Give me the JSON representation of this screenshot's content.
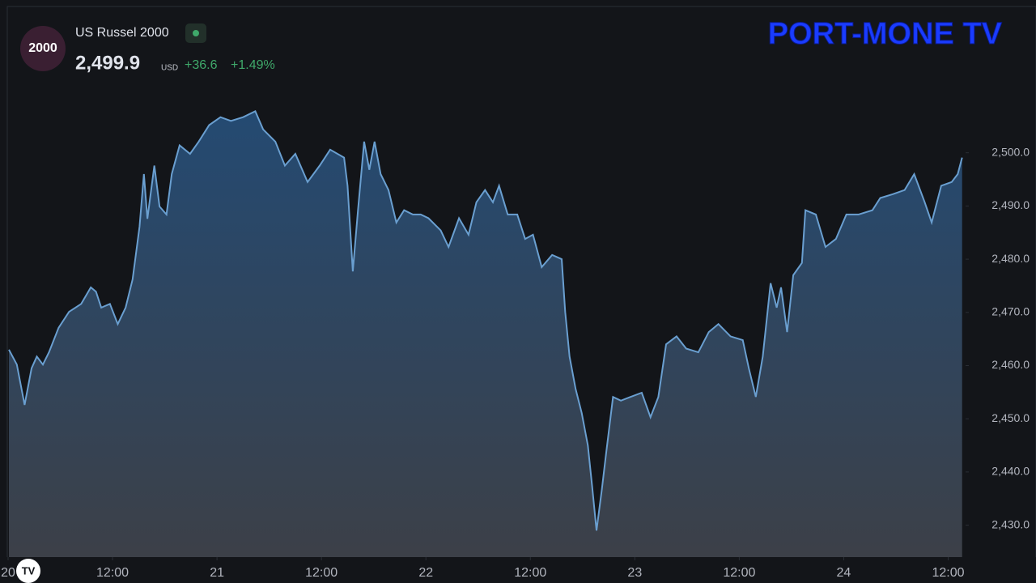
{
  "header": {
    "logo": "2000",
    "symbol": "US Russel 2000",
    "price": "2,499.9",
    "currency": "USD",
    "change": "+36.6",
    "change_pct": "+1.49%"
  },
  "watermark": "PORT-MONE TV",
  "chart_data": {
    "type": "area",
    "color": "#6a9fd0",
    "x": [
      0.09,
      1.0,
      1.9,
      2.7,
      3.3,
      4.0,
      4.7,
      5.8,
      7.0,
      8.4,
      9.5,
      10.1,
      10.7,
      11.7,
      12.6,
      13.5,
      14.3,
      15.1,
      15.6,
      16.0,
      16.8,
      17.4,
      18.2,
      18.8,
      19.7,
      20.9,
      21.9,
      23.1,
      24.4,
      25.6,
      27.0,
      28.4,
      29.3,
      30.7,
      31.8,
      33.0,
      34.4,
      35.8,
      37.0,
      38.6,
      39.0,
      39.6,
      40.2,
      40.9,
      41.5,
      42.1,
      42.8,
      43.7,
      44.6,
      45.5,
      46.5,
      47.4,
      48.3,
      49.7,
      50.6,
      51.8,
      52.9,
      53.8,
      54.8,
      55.7,
      56.4,
      57.4,
      58.5,
      59.4,
      60.3,
      61.3,
      62.5,
      63.6,
      64.0,
      64.5,
      65.2,
      65.9,
      66.6,
      67.1,
      67.6,
      68.2,
      68.7,
      69.5,
      70.4,
      71.5,
      72.8,
      73.8,
      74.7,
      75.6,
      76.8,
      77.9,
      79.3,
      80.5,
      81.6,
      83.0,
      84.4,
      85.1,
      85.9,
      86.7,
      87.6,
      88.3,
      88.8,
      89.5,
      90.2,
      91.2,
      91.6,
      92.8,
      93.9,
      95.1,
      96.3,
      97.7,
      99.3,
      100.2,
      101.6,
      103.0,
      104.1,
      105.3,
      106.1,
      107.2,
      108.4,
      109.1,
      109.6
    ],
    "values": [
      2463.0,
      2460.2,
      2452.6,
      2459.5,
      2461.7,
      2460.2,
      2462.5,
      2467.1,
      2470.1,
      2471.6,
      2474.7,
      2473.9,
      2470.9,
      2471.6,
      2467.8,
      2470.9,
      2476.2,
      2486.1,
      2496.0,
      2487.6,
      2497.6,
      2489.9,
      2488.4,
      2496.0,
      2501.4,
      2499.8,
      2502.1,
      2505.2,
      2506.7,
      2506.0,
      2506.7,
      2507.8,
      2504.4,
      2502.1,
      2497.6,
      2499.8,
      2494.5,
      2497.6,
      2500.6,
      2499.1,
      2493.8,
      2477.7,
      2489.2,
      2502.1,
      2496.8,
      2502.1,
      2496.0,
      2493.0,
      2486.9,
      2489.2,
      2488.4,
      2488.4,
      2487.7,
      2485.4,
      2482.3,
      2487.7,
      2484.6,
      2490.7,
      2493.0,
      2490.7,
      2493.8,
      2488.4,
      2488.4,
      2483.8,
      2484.6,
      2478.5,
      2480.8,
      2480.0,
      2470.1,
      2461.7,
      2455.6,
      2451.1,
      2445.0,
      2437.3,
      2429.0,
      2436.6,
      2443.4,
      2454.1,
      2453.4,
      2454.1,
      2454.9,
      2450.3,
      2454.1,
      2464.0,
      2465.5,
      2463.2,
      2462.5,
      2466.3,
      2467.8,
      2465.5,
      2464.8,
      2459.5,
      2454.1,
      2461.7,
      2475.5,
      2470.9,
      2474.7,
      2466.3,
      2477.0,
      2479.3,
      2489.2,
      2488.4,
      2482.3,
      2483.8,
      2488.4,
      2488.4,
      2489.2,
      2491.5,
      2492.2,
      2493.0,
      2496.0,
      2490.7,
      2486.9,
      2493.8,
      2494.5,
      2496.0,
      2499.1
    ],
    "xlim": [
      0,
      110
    ],
    "xticks": [
      {
        "value": 0,
        "label": "20"
      },
      {
        "value": 12,
        "label": "12:00"
      },
      {
        "value": 24,
        "label": "21"
      },
      {
        "value": 36,
        "label": "12:00"
      },
      {
        "value": 48,
        "label": "22"
      },
      {
        "value": 60,
        "label": "12:00"
      },
      {
        "value": 72,
        "label": "23"
      },
      {
        "value": 84,
        "label": "12:00"
      },
      {
        "value": 96,
        "label": "24"
      },
      {
        "value": 108,
        "label": "12:00"
      }
    ],
    "ylim": [
      2424,
      2513.5
    ],
    "yticks": [
      {
        "value": 2430,
        "label": "2,430.0"
      },
      {
        "value": 2440,
        "label": "2,440.0"
      },
      {
        "value": 2450,
        "label": "2,450.0"
      },
      {
        "value": 2460,
        "label": "2,460.0"
      },
      {
        "value": 2470,
        "label": "2,470.0"
      },
      {
        "value": 2480,
        "label": "2,480.0"
      },
      {
        "value": 2490,
        "label": "2,490.0"
      },
      {
        "value": 2500,
        "label": "2,500.0"
      }
    ]
  }
}
